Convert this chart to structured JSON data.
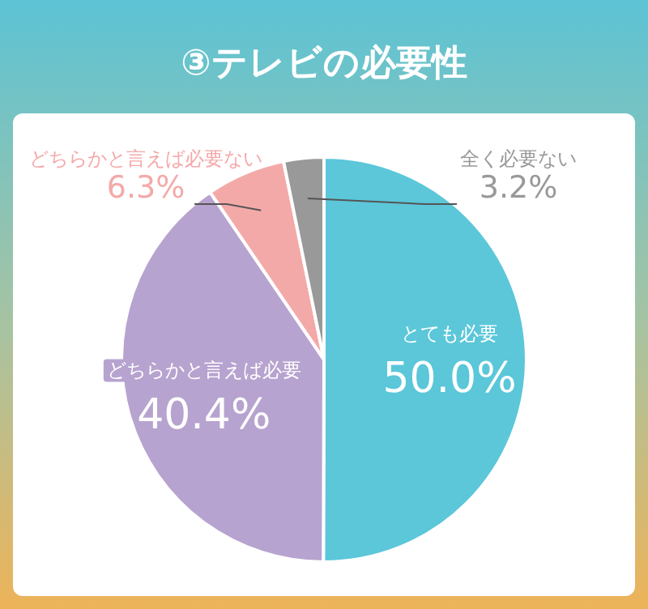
{
  "chart_data": {
    "type": "pie",
    "title": "③テレビの必要性",
    "categories": [
      "とても必要",
      "どちらかと言えば必要",
      "どちらかと言えば必要ない",
      "全く必要ない"
    ],
    "values": [
      50.0,
      40.4,
      6.3,
      3.2
    ],
    "colors": [
      "#5bc7d9",
      "#b7a3cf",
      "#f4a9a9",
      "#999999"
    ],
    "value_labels": [
      "50.0%",
      "40.4%",
      "6.3%",
      "3.2%"
    ],
    "legend": false
  }
}
